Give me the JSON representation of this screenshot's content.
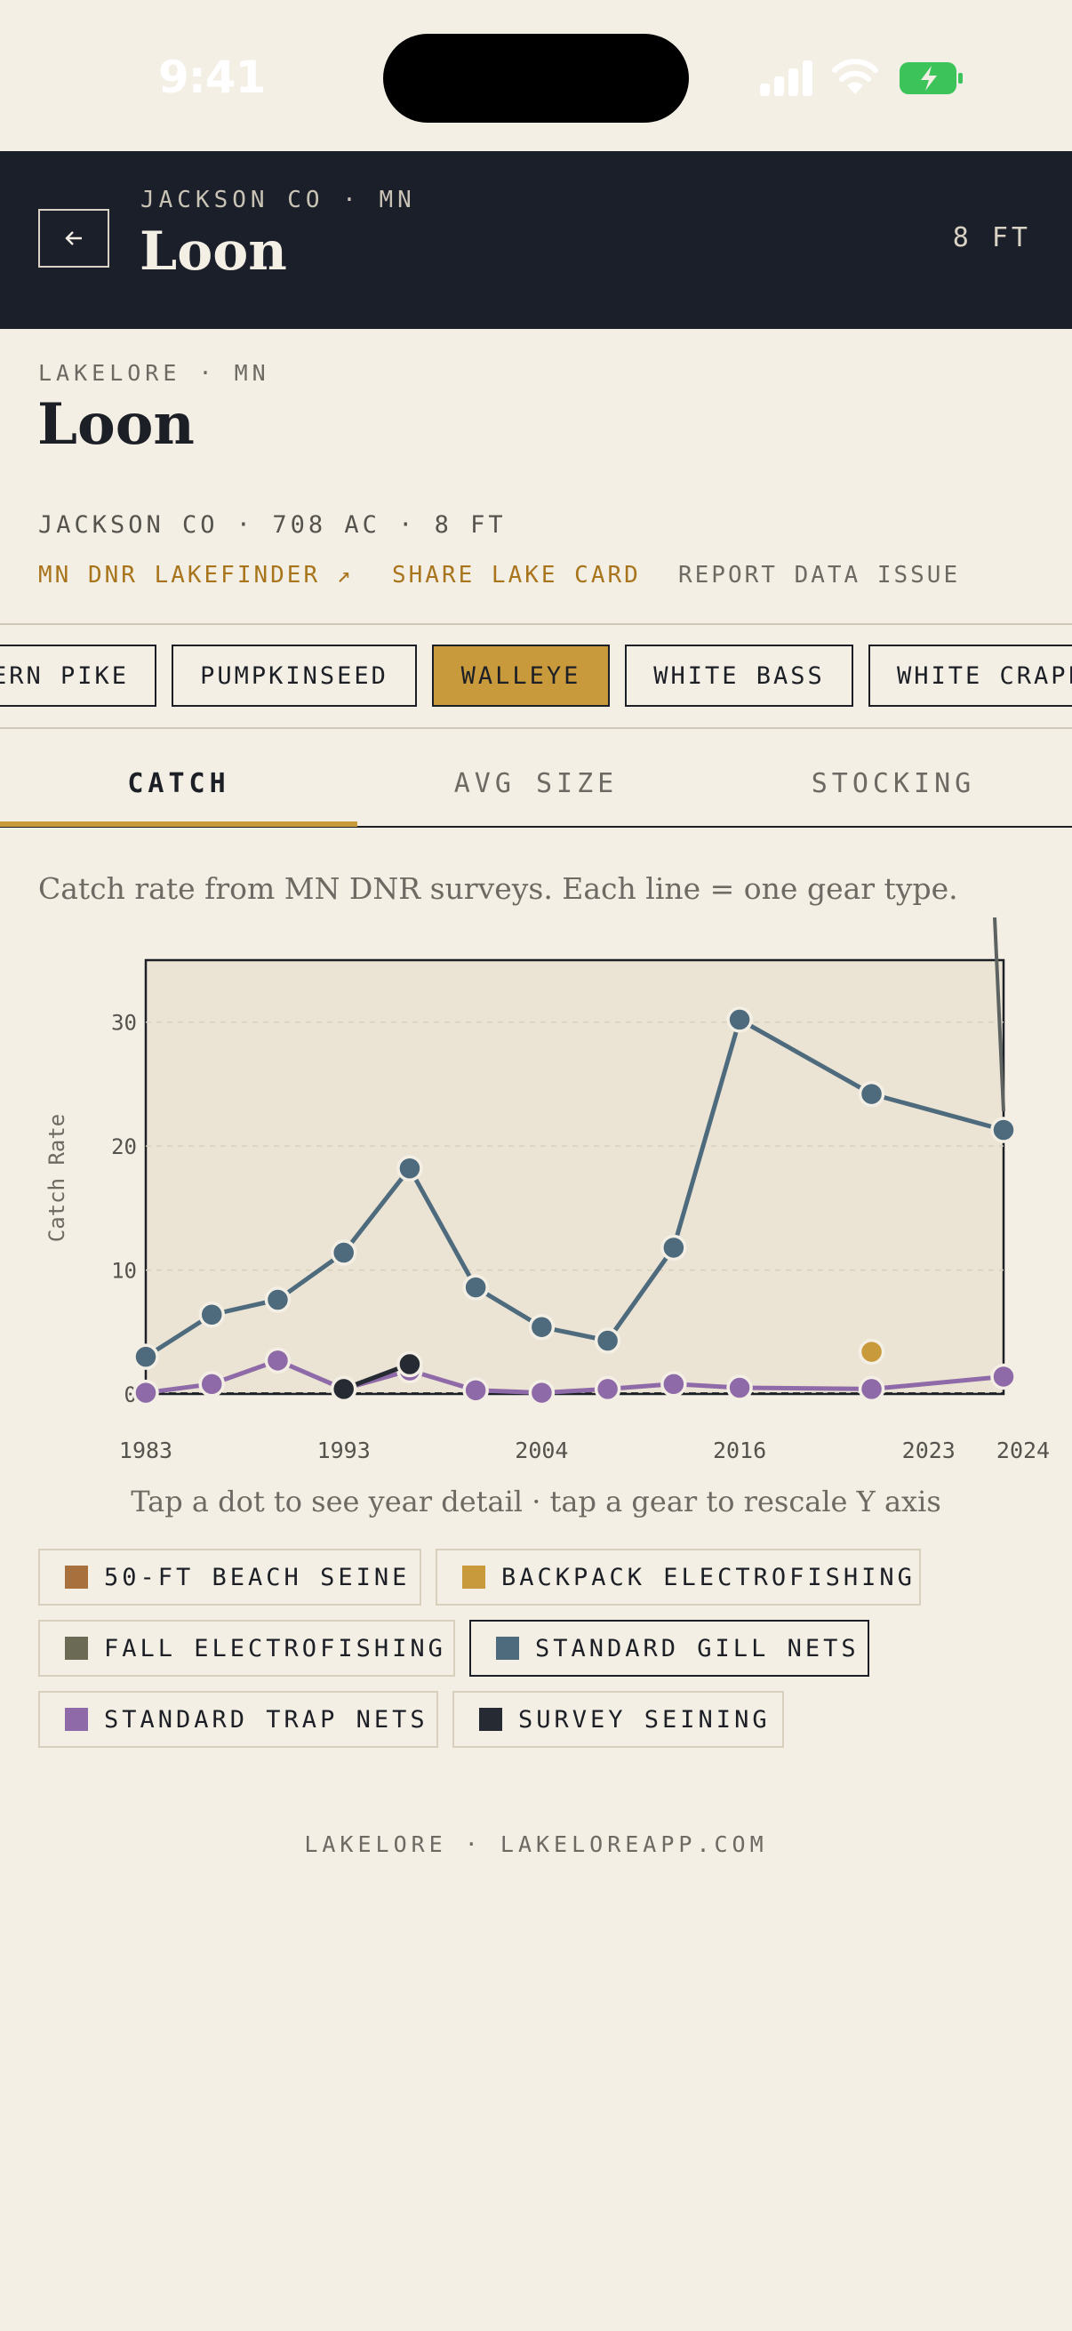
{
  "status_bar": {
    "time": "9:41"
  },
  "header": {
    "subtitle": "JACKSON CO · MN",
    "title": "Loon",
    "depth": "8 FT"
  },
  "lake": {
    "brand_line": "LAKELORE · MN",
    "title": "Loon",
    "meta": "JACKSON CO · 708 AC · 8 FT",
    "links": {
      "lakefinder": "MN DNR LAKEFINDER ↗",
      "share": "SHARE LAKE CARD",
      "report": "REPORT DATA ISSUE"
    }
  },
  "species": {
    "items": [
      "ERN PIKE",
      "PUMPKINSEED",
      "WALLEYE",
      "WHITE BASS",
      "WHITE CRAPP"
    ],
    "selected": "WALLEYE"
  },
  "tabs": {
    "items": [
      "CATCH",
      "AVG SIZE",
      "STOCKING"
    ],
    "active": "CATCH"
  },
  "caption": "Catch rate from MN DNR surveys. Each line = one gear type.",
  "chart_hint": "Tap a dot to see year detail · tap a gear to rescale Y axis",
  "chart_data": {
    "type": "line",
    "title": "",
    "xlabel": "",
    "ylabel": "Catch Rate",
    "x_tick_labels": [
      "1983",
      "1993",
      "2004",
      "2016",
      "2023",
      "2024"
    ],
    "y_ticks": [
      0,
      10,
      20,
      30
    ],
    "y_tick_labels": [
      "0",
      "10",
      "20",
      "30"
    ],
    "ylim": [
      0,
      35
    ],
    "grid": true,
    "series": [
      {
        "name": "STANDARD GILL NETS",
        "color": "#4e6b7e",
        "points": [
          [
            0,
            3.0
          ],
          [
            1,
            6.4
          ],
          [
            2,
            7.6
          ],
          [
            3,
            11.4
          ],
          [
            4,
            18.2
          ],
          [
            5,
            8.6
          ],
          [
            6,
            5.4
          ],
          [
            7,
            4.3
          ],
          [
            8,
            11.8
          ],
          [
            9,
            30.2
          ],
          [
            11,
            24.2
          ],
          [
            13,
            21.3
          ]
        ]
      },
      {
        "name": "STANDARD TRAP NETS",
        "color": "#8f6aa8",
        "points": [
          [
            0,
            0.1
          ],
          [
            1,
            0.8
          ],
          [
            2,
            2.7
          ],
          [
            3,
            0.4
          ],
          [
            4,
            1.9
          ],
          [
            5,
            0.3
          ],
          [
            6,
            0.1
          ],
          [
            7,
            0.4
          ],
          [
            8,
            0.8
          ],
          [
            9,
            0.5
          ],
          [
            11,
            0.4
          ],
          [
            13,
            1.4
          ]
        ]
      },
      {
        "name": "SURVEY SEINING",
        "color": "#262a33",
        "points": [
          [
            3,
            0.4
          ],
          [
            4,
            2.4
          ]
        ]
      },
      {
        "name": "BACKPACK ELECTROFISHING",
        "color": "#c89a3c",
        "points": [
          [
            11,
            3.4
          ]
        ]
      }
    ],
    "x_index_to_label": {
      "0": "1983",
      "3": "1993",
      "6": "2004",
      "9": "2016",
      "12": "2023",
      "13": "2024"
    }
  },
  "legend": {
    "items": [
      {
        "label": "50-FT BEACH SEINE",
        "color": "#a8703c"
      },
      {
        "label": "BACKPACK ELECTROFISHING",
        "color": "#c89a3c"
      },
      {
        "label": "FALL ELECTROFISHING",
        "color": "#6b6a55"
      },
      {
        "label": "STANDARD GILL NETS",
        "color": "#4e6b7e"
      },
      {
        "label": "STANDARD TRAP NETS",
        "color": "#8f6aa8"
      },
      {
        "label": "SURVEY SEINING",
        "color": "#262a33"
      }
    ],
    "active": "STANDARD GILL NETS"
  },
  "footer": "LAKELORE · LAKELOREAPP.COM"
}
